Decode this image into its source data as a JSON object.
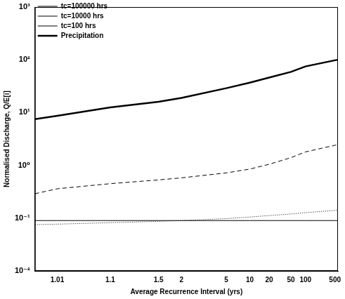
{
  "chart_data": {
    "type": "line",
    "x_label": "Average Recurrence Interval (yrs)",
    "y_label": "Normalised Discharge, Q/E[i]",
    "x": [
      1.003,
      1.01,
      1.1,
      1.5,
      2,
      5,
      10,
      20,
      50,
      100,
      500,
      600
    ],
    "series": [
      {
        "name": "tc=100000 hrs",
        "color": "#000000",
        "line_style": "solid",
        "values": [
          0.09,
          0.09,
          0.09,
          0.09,
          0.09,
          0.09,
          0.09,
          0.09,
          0.09,
          0.09,
          0.09,
          0.09
        ]
      },
      {
        "name": "tc=10000 hrs",
        "color": "#000000",
        "line_style": "dotted",
        "values": [
          0.075,
          0.077,
          0.082,
          0.087,
          0.09,
          0.098,
          0.105,
          0.112,
          0.12,
          0.127,
          0.14,
          0.145
        ]
      },
      {
        "name": "tc=100 hrs",
        "color": "#000000",
        "line_style": "dashed",
        "values": [
          0.29,
          0.36,
          0.45,
          0.53,
          0.58,
          0.72,
          0.85,
          1.05,
          1.4,
          1.8,
          2.4,
          2.5
        ]
      },
      {
        "name": "Precipitation",
        "color": "#000000",
        "line_style": "thick",
        "values": [
          7.5,
          8.7,
          12.5,
          16,
          19,
          29,
          37,
          46,
          59,
          75,
          98,
          100
        ]
      }
    ],
    "xlim": [
      1.003,
      600
    ],
    "xticks": [
      1.01,
      1.1,
      1.5,
      2,
      5,
      10,
      20,
      50,
      100,
      500
    ],
    "ylim": [
      0.01,
      1000
    ],
    "yticks": [
      {
        "value": 0.01,
        "label": "10⁻²"
      },
      {
        "value": 0.1,
        "label": "10⁻¹"
      },
      {
        "value": 1,
        "label": "10⁰"
      },
      {
        "value": 10,
        "label": "10¹"
      },
      {
        "value": 100,
        "label": "10²"
      },
      {
        "value": 1000,
        "label": "10³"
      }
    ],
    "log": "y",
    "grid": false,
    "legend": "upper left"
  }
}
